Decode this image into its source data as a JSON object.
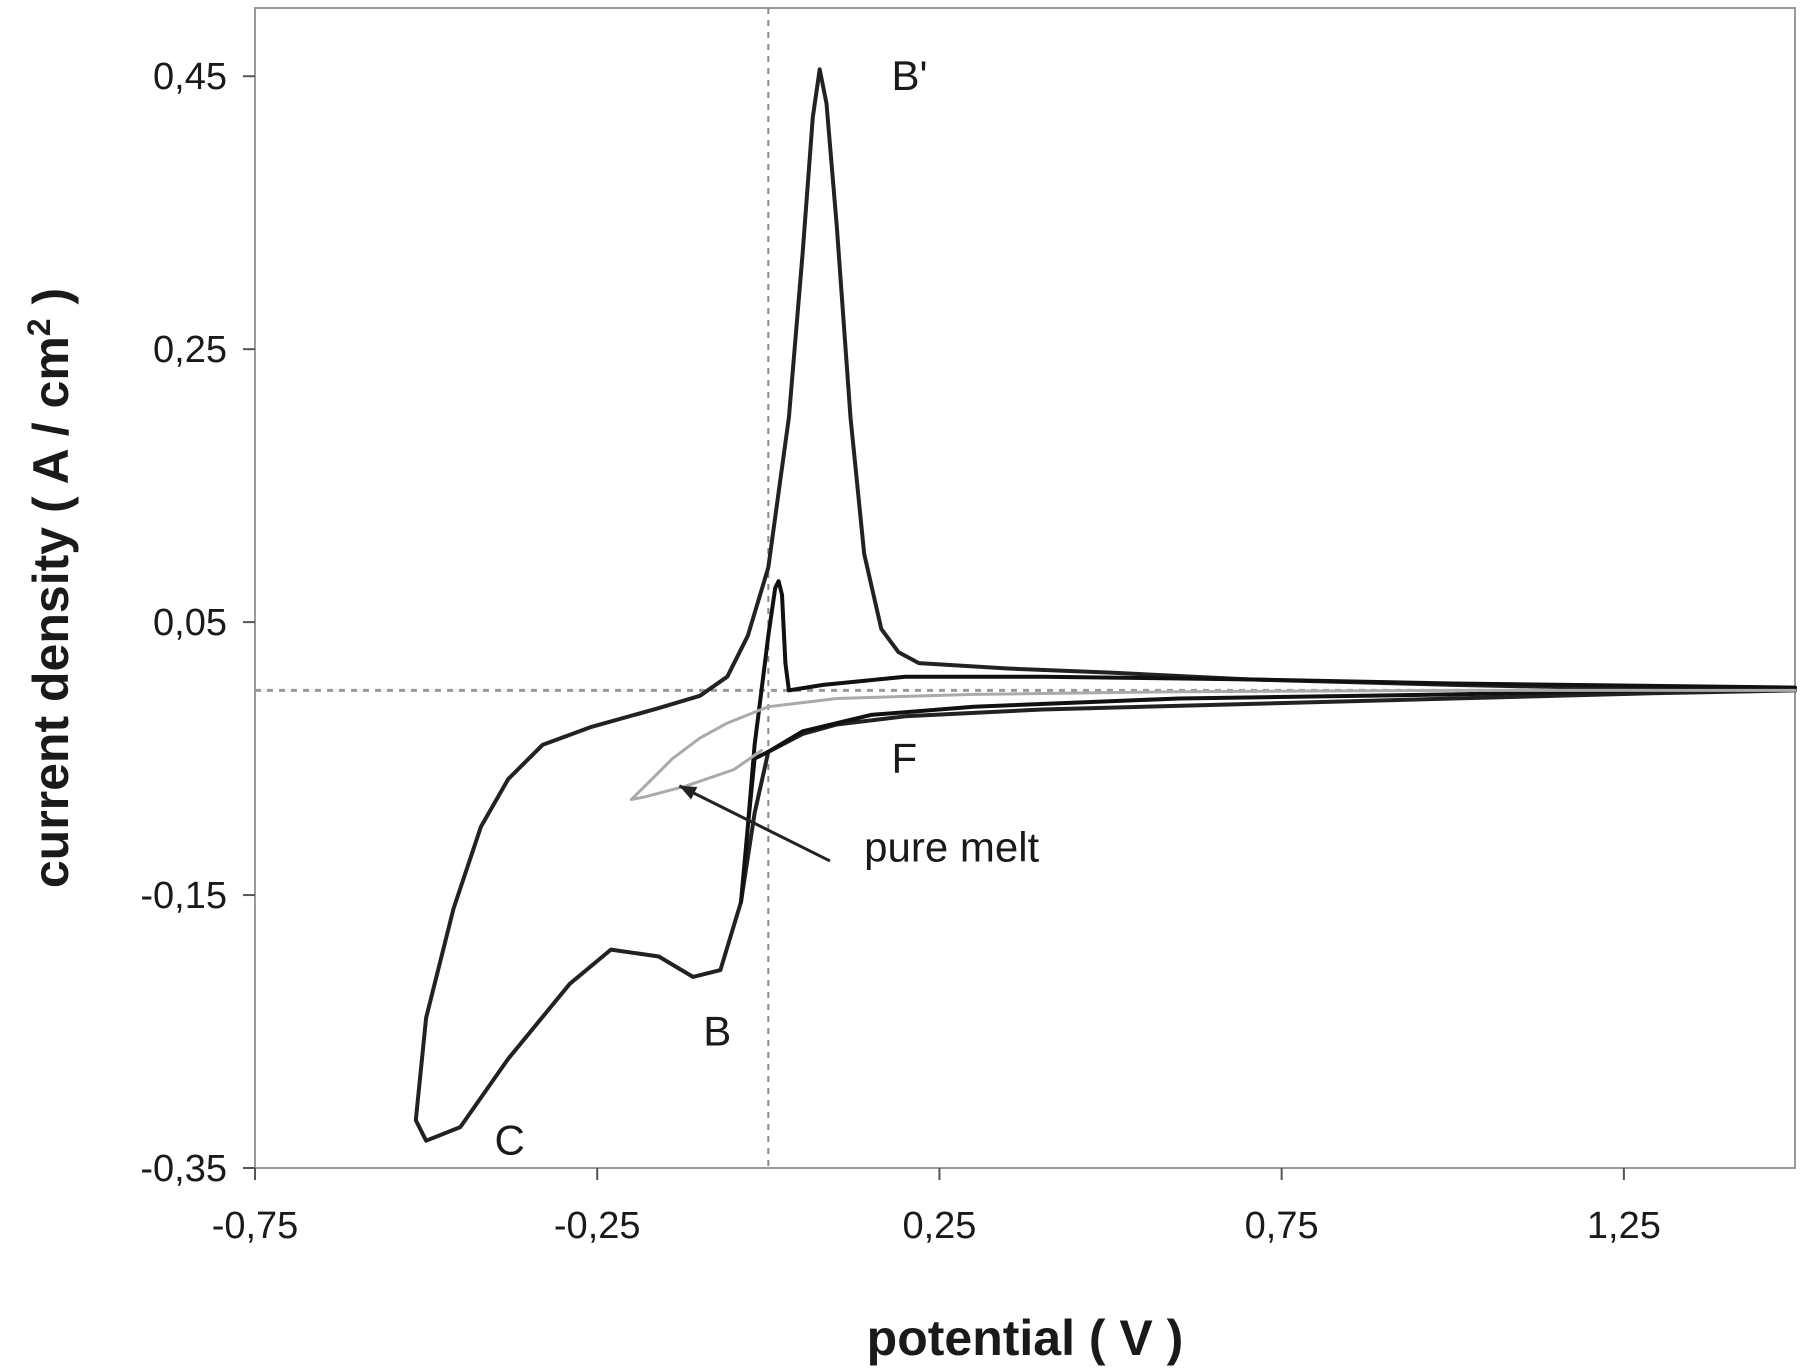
{
  "chart_data": {
    "type": "line",
    "xlabel": "potential ( V )",
    "ylabel": "current density ( A / cm",
    "ylabel_sup": "2",
    "ylabel_close": " )",
    "xlim": [
      -0.75,
      1.5
    ],
    "ylim": [
      -0.35,
      0.5
    ],
    "x_ticks": [
      -0.75,
      -0.25,
      0.25,
      0.75,
      1.25
    ],
    "x_tick_labels": [
      "-0,75",
      "-0,25",
      "0,25",
      "0,75",
      "1,25"
    ],
    "y_ticks": [
      -0.35,
      -0.15,
      0.05,
      0.25,
      0.45
    ],
    "y_tick_labels": [
      "-0,35",
      "-0,15",
      "0,05",
      "0,25",
      "0,45"
    ],
    "grid": false,
    "reference_lines": {
      "vertical_x": 0.0,
      "horizontal_y": 0.0
    },
    "series": [
      {
        "color": "#222222",
        "points": [
          [
            0.0,
            -0.045
          ],
          [
            -0.02,
            -0.09
          ],
          [
            -0.04,
            -0.155
          ],
          [
            -0.07,
            -0.205
          ],
          [
            -0.11,
            -0.21
          ],
          [
            -0.16,
            -0.195
          ],
          [
            -0.23,
            -0.19
          ],
          [
            -0.29,
            -0.215
          ],
          [
            -0.38,
            -0.27
          ],
          [
            -0.45,
            -0.32
          ],
          [
            -0.5,
            -0.33
          ],
          [
            -0.515,
            -0.315
          ],
          [
            -0.5,
            -0.24
          ],
          [
            -0.46,
            -0.16
          ],
          [
            -0.42,
            -0.1
          ],
          [
            -0.38,
            -0.065
          ],
          [
            -0.33,
            -0.04
          ],
          [
            -0.26,
            -0.027
          ],
          [
            -0.16,
            -0.013
          ],
          [
            -0.1,
            -0.004
          ],
          [
            -0.06,
            0.01
          ],
          [
            -0.03,
            0.04
          ],
          [
            0.0,
            0.09
          ],
          [
            0.03,
            0.2
          ],
          [
            0.05,
            0.32
          ],
          [
            0.065,
            0.42
          ],
          [
            0.075,
            0.455
          ],
          [
            0.085,
            0.43
          ],
          [
            0.1,
            0.34
          ],
          [
            0.12,
            0.2
          ],
          [
            0.14,
            0.1
          ],
          [
            0.165,
            0.045
          ],
          [
            0.19,
            0.028
          ],
          [
            0.22,
            0.02
          ],
          [
            0.35,
            0.016
          ],
          [
            0.5,
            0.013
          ],
          [
            0.7,
            0.008
          ],
          [
            1.0,
            0.004
          ],
          [
            1.2,
            0.002
          ],
          [
            1.5,
            0.0
          ],
          [
            1.3,
            -0.002
          ],
          [
            1.0,
            -0.006
          ],
          [
            0.7,
            -0.01
          ],
          [
            0.4,
            -0.014
          ],
          [
            0.2,
            -0.019
          ],
          [
            0.1,
            -0.025
          ],
          [
            0.05,
            -0.032
          ],
          [
            0.0,
            -0.045
          ]
        ]
      },
      {
        "color": "#111111",
        "points": [
          [
            -0.02,
            -0.05
          ],
          [
            -0.03,
            -0.1
          ],
          [
            -0.04,
            -0.155
          ],
          [
            -0.03,
            -0.1
          ],
          [
            -0.02,
            -0.04
          ],
          [
            -0.01,
            0.0
          ],
          [
            0.0,
            0.04
          ],
          [
            0.01,
            0.075
          ],
          [
            0.015,
            0.08
          ],
          [
            0.02,
            0.07
          ],
          [
            0.025,
            0.02
          ],
          [
            0.03,
            0.0
          ],
          [
            0.08,
            0.004
          ],
          [
            0.2,
            0.01
          ],
          [
            0.4,
            0.01
          ],
          [
            0.7,
            0.008
          ],
          [
            1.0,
            0.005
          ],
          [
            1.5,
            0.002
          ],
          [
            1.0,
            -0.003
          ],
          [
            0.6,
            -0.006
          ],
          [
            0.3,
            -0.012
          ],
          [
            0.15,
            -0.018
          ],
          [
            0.05,
            -0.03
          ],
          [
            0.0,
            -0.045
          ],
          [
            -0.02,
            -0.05
          ]
        ]
      },
      {
        "color": "#aaaaaa",
        "points": [
          [
            -0.01,
            -0.044
          ],
          [
            -0.05,
            -0.058
          ],
          [
            -0.12,
            -0.07
          ],
          [
            -0.18,
            -0.078
          ],
          [
            -0.2,
            -0.08
          ],
          [
            -0.18,
            -0.07
          ],
          [
            -0.14,
            -0.05
          ],
          [
            -0.1,
            -0.035
          ],
          [
            -0.06,
            -0.024
          ],
          [
            -0.03,
            -0.018
          ],
          [
            0.0,
            -0.012
          ],
          [
            0.1,
            -0.006
          ],
          [
            0.3,
            -0.003
          ],
          [
            0.6,
            -0.001
          ],
          [
            1.0,
            0.0
          ],
          [
            1.5,
            0.0
          ]
        ]
      }
    ],
    "annotations": [
      {
        "text": "B'",
        "x": 0.18,
        "y": 0.45
      },
      {
        "text": "B",
        "x": -0.095,
        "y": -0.25
      },
      {
        "text": "C",
        "x": -0.4,
        "y": -0.33
      },
      {
        "text": "F",
        "x": 0.18,
        "y": -0.05
      },
      {
        "text": "pure melt",
        "x": 0.14,
        "y": -0.115
      }
    ],
    "arrow": {
      "from": [
        0.09,
        -0.125
      ],
      "to": [
        -0.13,
        -0.07
      ]
    }
  }
}
